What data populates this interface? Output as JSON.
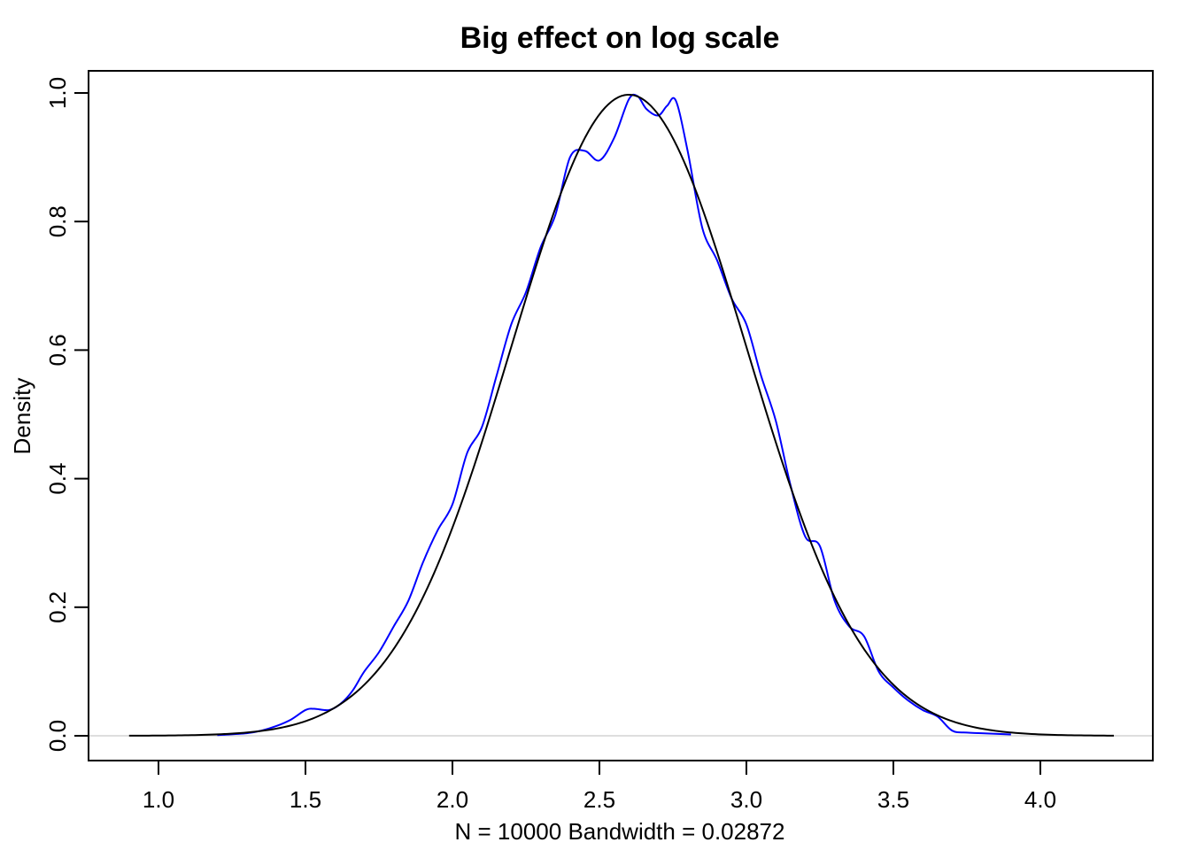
{
  "chart_data": {
    "type": "line",
    "title": "Big effect on log scale",
    "xlabel": "N = 10000   Bandwidth = 0.02872",
    "ylabel": "Density",
    "xlim": [
      0.8,
      4.35
    ],
    "ylim": [
      -0.04,
      1.04
    ],
    "x_ticks": [
      1.0,
      1.5,
      2.0,
      2.5,
      3.0,
      3.5,
      4.0
    ],
    "x_tick_labels": [
      "1.0",
      "1.5",
      "2.0",
      "2.5",
      "3.0",
      "3.5",
      "4.0"
    ],
    "y_ticks": [
      0.0,
      0.2,
      0.4,
      0.6,
      0.8,
      1.0
    ],
    "y_tick_labels": [
      "0.0",
      "0.2",
      "0.4",
      "0.6",
      "0.8",
      "1.0"
    ],
    "grid": false,
    "legend": "none",
    "series": [
      {
        "color": "#0000ff",
        "x": [
          1.2,
          1.3,
          1.35,
          1.4,
          1.45,
          1.5,
          1.53,
          1.58,
          1.62,
          1.66,
          1.7,
          1.75,
          1.8,
          1.85,
          1.9,
          1.95,
          2.0,
          2.05,
          2.1,
          2.15,
          2.2,
          2.25,
          2.3,
          2.35,
          2.4,
          2.45,
          2.5,
          2.55,
          2.6,
          2.63,
          2.66,
          2.7,
          2.73,
          2.76,
          2.8,
          2.85,
          2.9,
          2.95,
          3.0,
          3.05,
          3.1,
          3.15,
          3.2,
          3.25,
          3.3,
          3.35,
          3.4,
          3.45,
          3.5,
          3.55,
          3.6,
          3.65,
          3.7,
          3.75,
          3.8,
          3.9
        ],
        "y": [
          0.001,
          0.004,
          0.008,
          0.015,
          0.025,
          0.04,
          0.042,
          0.04,
          0.05,
          0.07,
          0.1,
          0.13,
          0.17,
          0.21,
          0.27,
          0.32,
          0.36,
          0.44,
          0.48,
          0.56,
          0.64,
          0.69,
          0.76,
          0.81,
          0.9,
          0.91,
          0.895,
          0.93,
          0.99,
          0.995,
          0.975,
          0.965,
          0.98,
          0.988,
          0.91,
          0.79,
          0.74,
          0.68,
          0.64,
          0.56,
          0.49,
          0.39,
          0.31,
          0.295,
          0.21,
          0.17,
          0.155,
          0.1,
          0.075,
          0.055,
          0.04,
          0.03,
          0.008,
          0.005,
          0.004,
          0.002
        ]
      },
      {
        "color": "#000000",
        "distribution": "normal",
        "mean": 2.6,
        "sd": 0.4,
        "x_range": [
          0.9,
          4.25
        ]
      }
    ]
  }
}
